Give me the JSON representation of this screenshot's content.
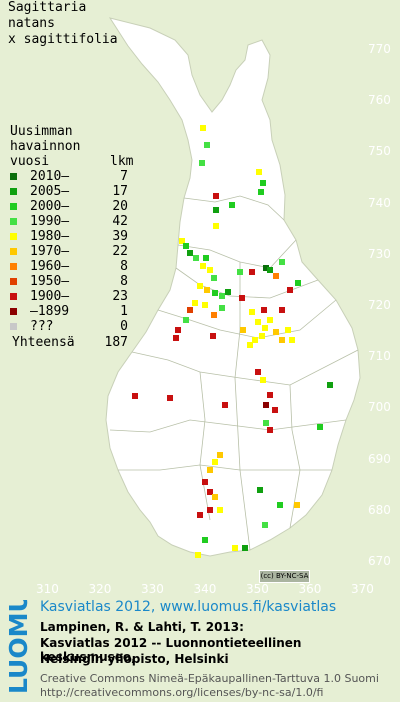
{
  "species": {
    "line1": "Sagittaria",
    "line2": "natans",
    "line3": "x sagittifolia"
  },
  "legend": {
    "header1": "Uusimman",
    "header2": "havainnon",
    "header3": "vuosi",
    "header_count": "lkm",
    "rows": [
      {
        "label": "2010–",
        "count": "7",
        "color": "#0b6e0b"
      },
      {
        "label": "2005–",
        "count": "17",
        "color": "#10a010"
      },
      {
        "label": "2000–",
        "count": "20",
        "color": "#20cc20"
      },
      {
        "label": "1990–",
        "count": "42",
        "color": "#44e044"
      },
      {
        "label": "1980–",
        "count": "39",
        "color": "#ffff00"
      },
      {
        "label": "1970–",
        "count": "22",
        "color": "#ffc800"
      },
      {
        "label": "1960–",
        "count": "8",
        "color": "#ff8000"
      },
      {
        "label": "1950–",
        "count": "8",
        "color": "#e04000"
      },
      {
        "label": "1900–",
        "count": "23",
        "color": "#c81010"
      },
      {
        "label": "–1899",
        "count": "1",
        "color": "#8b0000"
      },
      {
        "label": "???",
        "count": "0",
        "color": "#c8c8c8"
      }
    ],
    "total_label": "Yhteensä",
    "total_count": "187"
  },
  "axes": {
    "y_ticks": [
      "770",
      "760",
      "750",
      "740",
      "730",
      "720",
      "710",
      "700",
      "690",
      "680",
      "670"
    ],
    "x_ticks": [
      "310",
      "320",
      "330",
      "340",
      "350",
      "360",
      "370"
    ]
  },
  "license_badge": "(cc) BY-NC-SA",
  "footer": {
    "logo": "LUOMUS",
    "link": "Kasviatlas 2012, www.luomus.fi/kasviatlas",
    "citation1": "Lampinen, R. & Lahti, T. 2013:",
    "citation2": "Kasviatlas 2012 -- Luonnontieteellinen keskusmuseo,",
    "citation3": "Helsingin yliopisto, Helsinki",
    "cc1": "Creative Commons Nimeä-Epäkaupallinen-Tarttuva 1.0 Suomi",
    "cc2": "http://creativecommons.org/licenses/by-nc-sa/1.0/fi"
  },
  "colors": {
    "land": "#ffffff",
    "sea": "#e6efd4",
    "link": "#1a88c9"
  }
}
